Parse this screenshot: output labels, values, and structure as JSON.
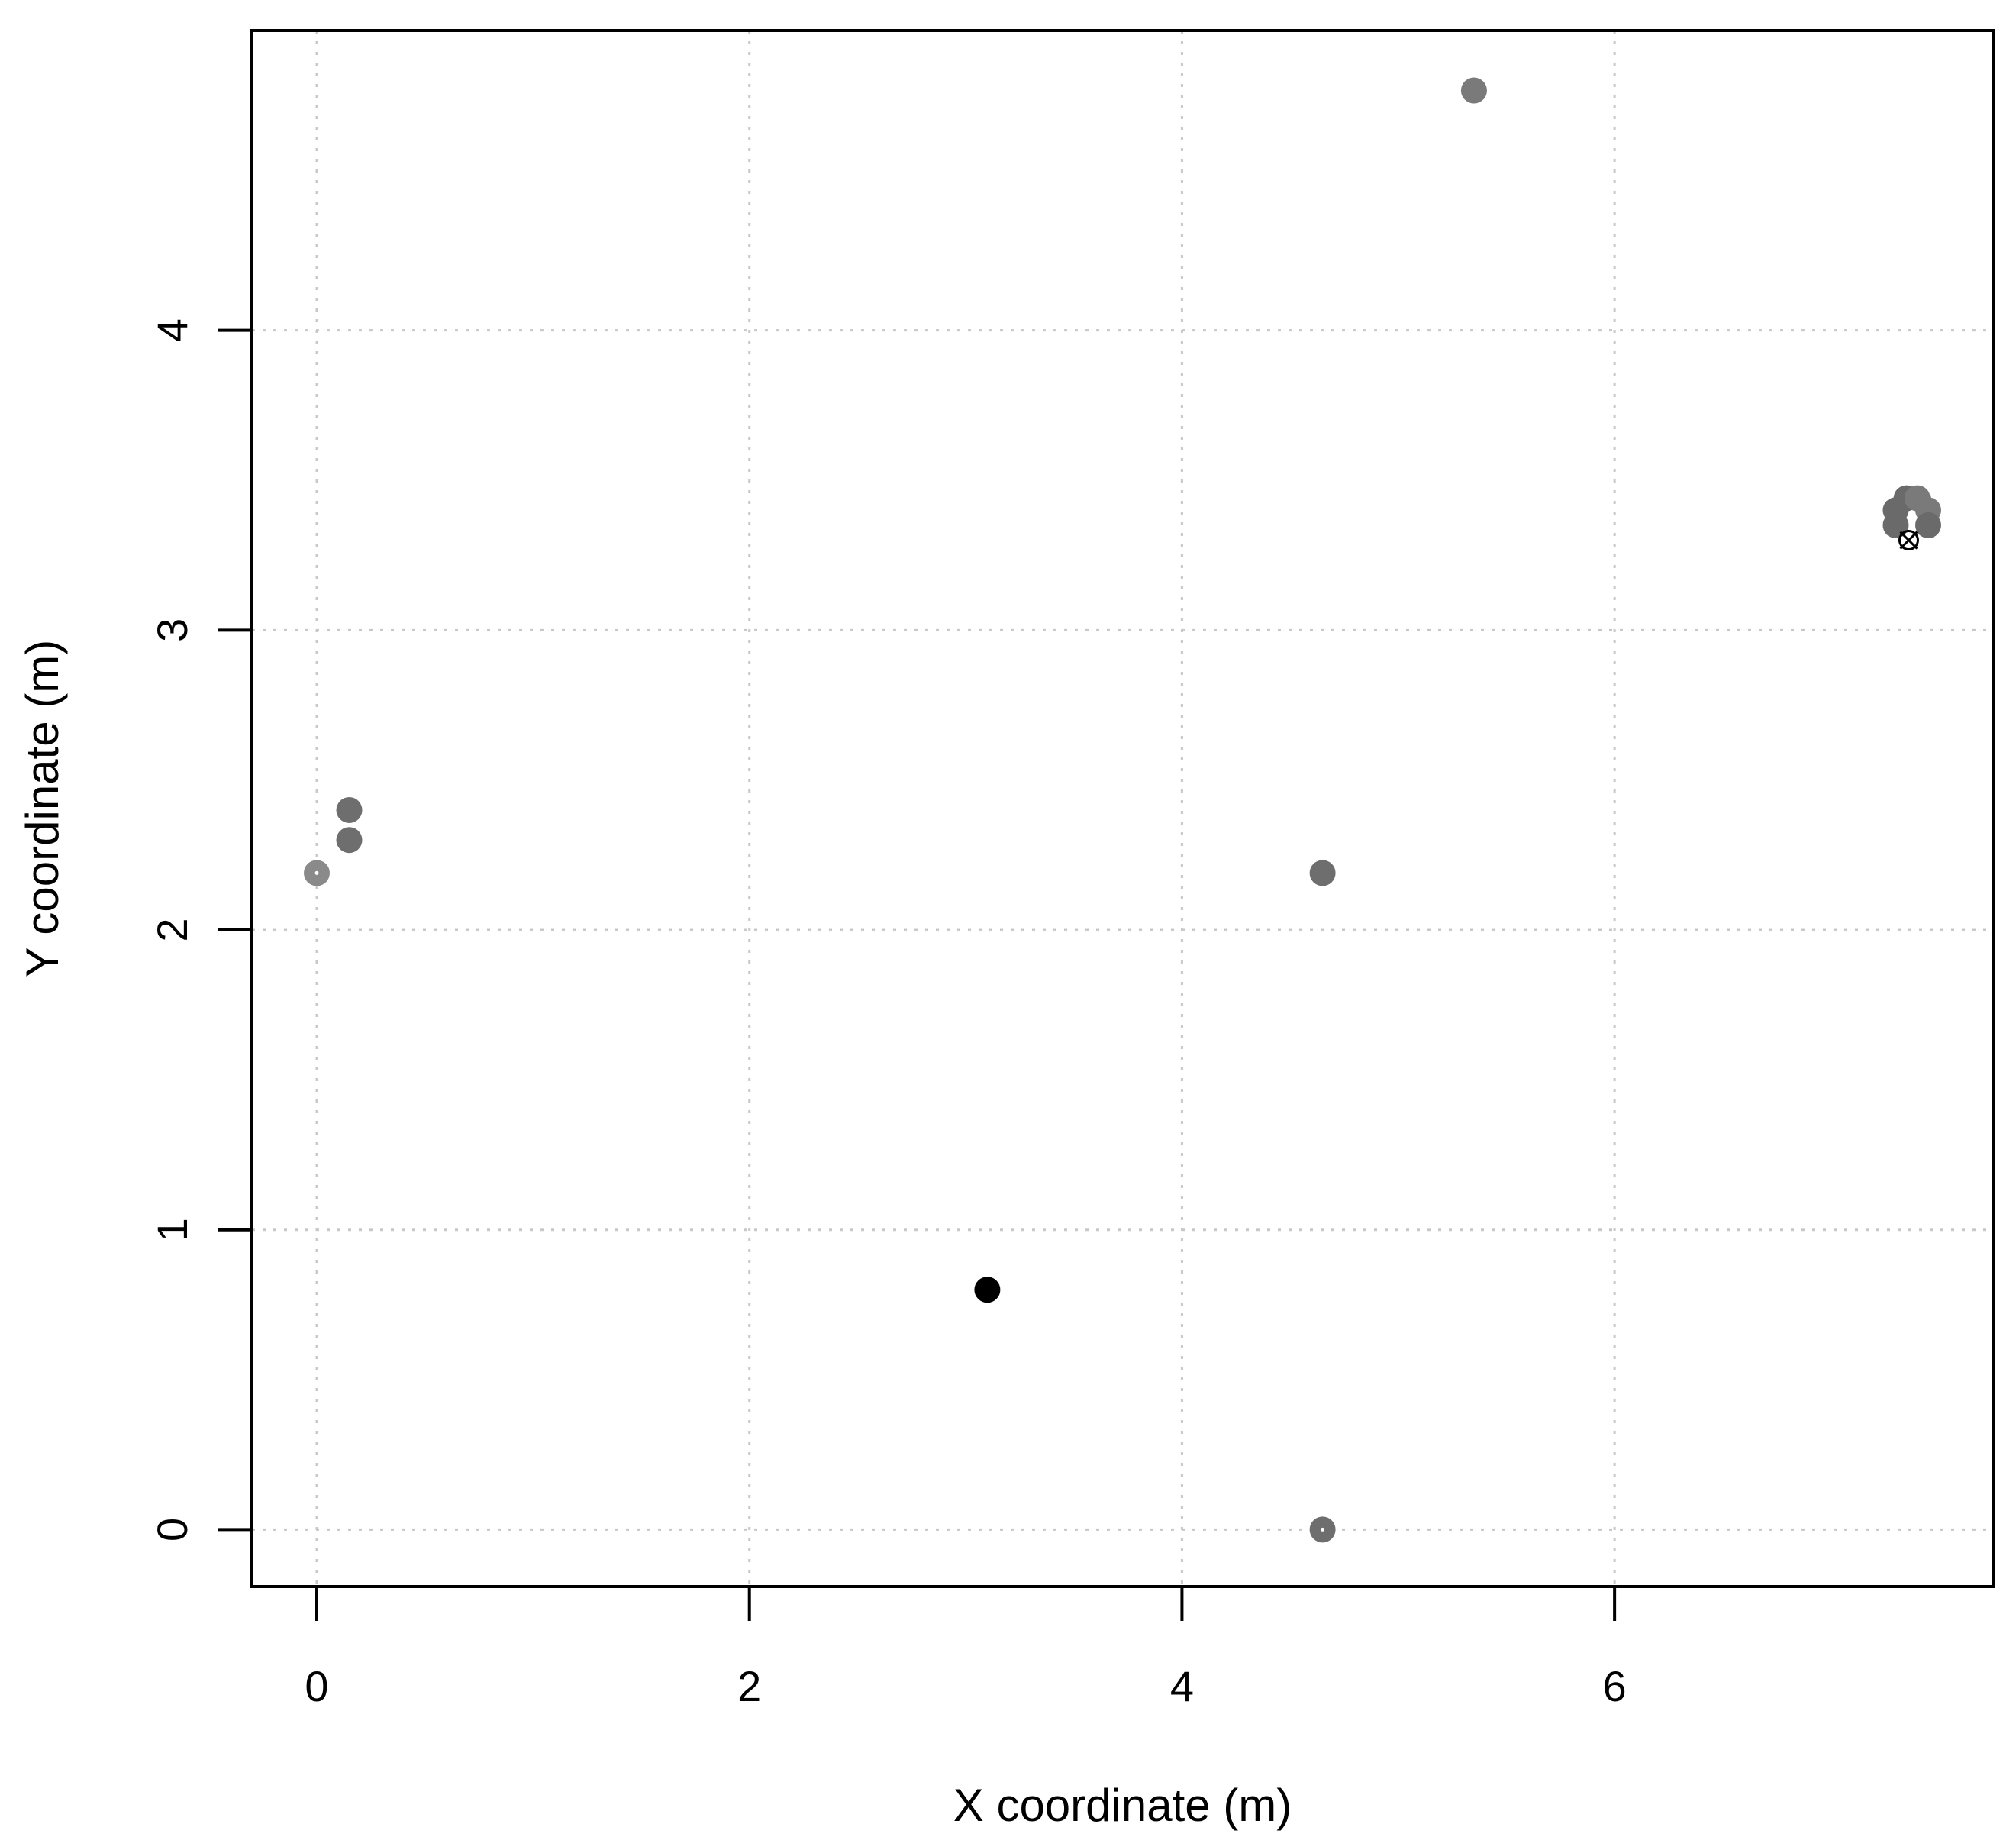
{
  "chart_data": {
    "type": "scatter",
    "title": "",
    "xlabel": "X coordinate (m)",
    "ylabel": "Y coordinate (m)",
    "xlim": [
      -0.3,
      7.75
    ],
    "ylim": [
      -0.19,
      5.0
    ],
    "x_ticks": [
      0,
      2,
      4,
      6
    ],
    "y_ticks": [
      0,
      1,
      2,
      3,
      4
    ],
    "x_tick_labels": [
      "0",
      "2",
      "4",
      "6"
    ],
    "y_tick_labels": [
      "0",
      "1",
      "2",
      "3",
      "4"
    ],
    "grid": true,
    "points": [
      {
        "x": 0.0,
        "y": 2.19,
        "color": "#8a8a8a",
        "hollow_center": true
      },
      {
        "x": 0.15,
        "y": 2.4,
        "color": "#6e6e6e"
      },
      {
        "x": 0.15,
        "y": 2.3,
        "color": "#6e6e6e"
      },
      {
        "x": 3.1,
        "y": 0.8,
        "color": "#000000"
      },
      {
        "x": 4.65,
        "y": 2.19,
        "color": "#6e6e6e"
      },
      {
        "x": 4.65,
        "y": 0.0,
        "color": "#6e6e6e",
        "hollow_center": true
      },
      {
        "x": 5.35,
        "y": 4.8,
        "color": "#7a7a7a"
      },
      {
        "x": 7.3,
        "y": 3.4,
        "color": "#6a6a6a"
      },
      {
        "x": 7.3,
        "y": 3.35,
        "color": "#6a6a6a"
      },
      {
        "x": 7.35,
        "y": 3.44,
        "color": "#6a6a6a"
      },
      {
        "x": 7.4,
        "y": 3.44,
        "color": "#7a7a7a"
      },
      {
        "x": 7.45,
        "y": 3.4,
        "color": "#7a7a7a"
      },
      {
        "x": 7.45,
        "y": 3.35,
        "color": "#6a6a6a"
      }
    ],
    "markers": [
      {
        "x": 7.36,
        "y": 3.3,
        "symbol": "circle-x",
        "color": "#000000"
      }
    ]
  }
}
